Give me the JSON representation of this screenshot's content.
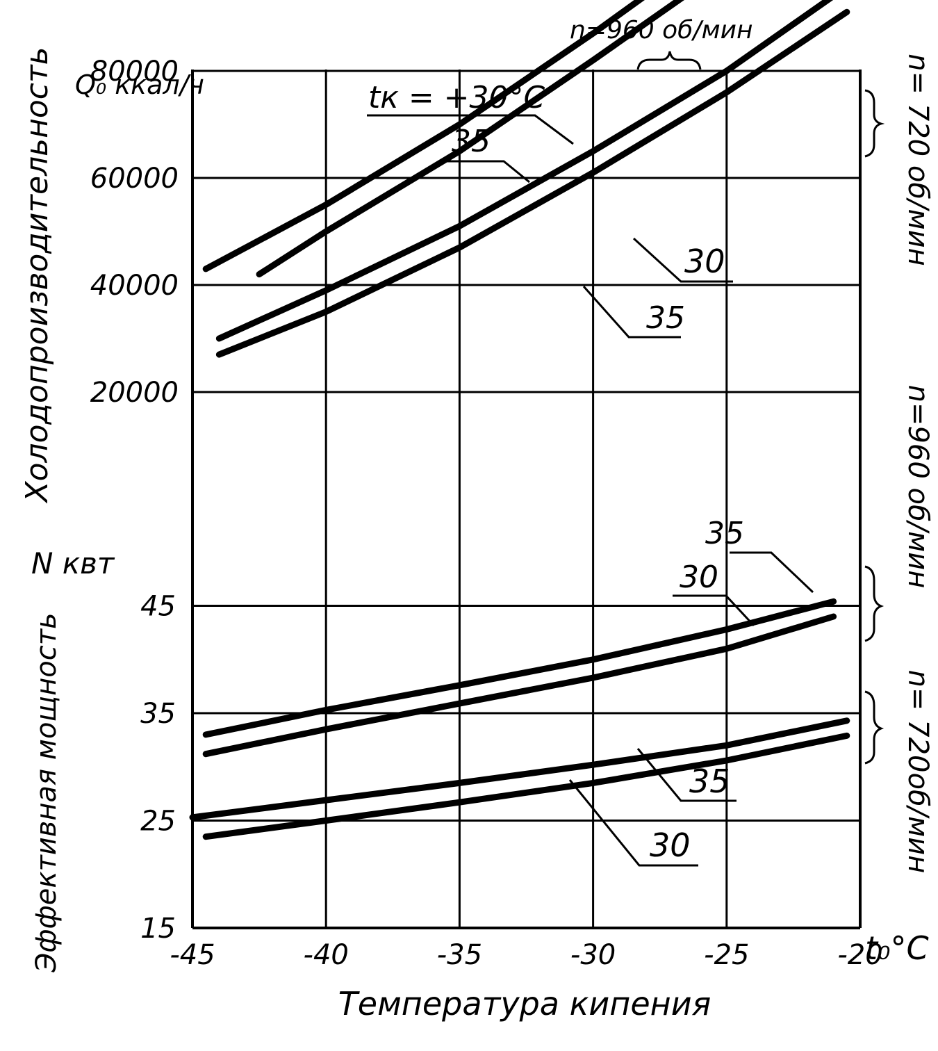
{
  "chart_data": {
    "type": "line",
    "x": [
      -45,
      -40,
      -35,
      -30,
      -25,
      -20
    ],
    "xlabel": "Температура кипения",
    "x_unit": "t₀°C",
    "xlim": [
      -45,
      -20
    ],
    "x_tick_labels": [
      "-45",
      "-40",
      "-35",
      "-30",
      "-25",
      "-20"
    ],
    "grid": true,
    "top_axis": {
      "ylabel": "Холодопроизводительность",
      "unit": "Q₀ ккал/ч",
      "ylim": [
        0,
        100000
      ],
      "tick_labels": [
        "80000",
        "60000",
        "40000",
        "20000"
      ],
      "tick_values": [
        80000,
        60000,
        40000,
        20000
      ]
    },
    "bottom_axis": {
      "ylabel": "Эффективная мощность",
      "unit": "N квт",
      "ylim": [
        15,
        55
      ],
      "tick_labels": [
        "45",
        "35",
        "25",
        "15"
      ],
      "tick_values": [
        45,
        35,
        25,
        15
      ]
    },
    "groups": {
      "cap_960": "n=960 об/мин",
      "cap_720": "n= 720 об/мин",
      "pow_960": "n=960 об/мин",
      "pow_720": "n= 720об/мин"
    },
    "curve_labels": {
      "cap_960_30": "tк = +30°C",
      "cap_960_35": "35",
      "cap_720_30": "30",
      "cap_720_35": "35",
      "pow_960_35": "35",
      "pow_960_30": "30",
      "pow_720_35": "35",
      "pow_720_30": "30"
    },
    "series": [
      {
        "name": "tк = +30°C",
        "group": "n=960 об/мин",
        "axis": "top",
        "x": [
          -44.5,
          -40,
          -35,
          -30,
          -27.5
        ],
        "values": [
          43000,
          55000,
          70000,
          87000,
          96000
        ]
      },
      {
        "name": "35",
        "group": "n=960 об/мин",
        "axis": "top",
        "x": [
          -42.5,
          -40,
          -35,
          -30,
          -26
        ],
        "values": [
          42000,
          50000,
          65000,
          82000,
          96000
        ]
      },
      {
        "name": "30",
        "group": "n= 720 об/мин",
        "axis": "top",
        "x": [
          -44,
          -40,
          -35,
          -30,
          -25,
          -21
        ],
        "values": [
          30000,
          39000,
          51000,
          65000,
          80000,
          94000
        ]
      },
      {
        "name": "35",
        "group": "n= 720 об/мин",
        "axis": "top",
        "x": [
          -44,
          -40,
          -35,
          -30,
          -25,
          -20.5
        ],
        "values": [
          27000,
          35000,
          47000,
          61000,
          76000,
          91000
        ]
      },
      {
        "name": "35",
        "group": "n=960 об/мин",
        "axis": "bottom",
        "x": [
          -44.5,
          -40,
          -35,
          -30,
          -25,
          -21
        ],
        "values": [
          33,
          35.3,
          37.6,
          40,
          42.8,
          45.4
        ]
      },
      {
        "name": "30",
        "group": "n=960 об/мин",
        "axis": "bottom",
        "x": [
          -44.5,
          -40,
          -35,
          -30,
          -25,
          -21
        ],
        "values": [
          31.2,
          33.5,
          35.9,
          38.3,
          41,
          44
        ]
      },
      {
        "name": "35",
        "group": "n= 720об/мин",
        "axis": "bottom",
        "x": [
          -45,
          -40,
          -35,
          -30,
          -25,
          -20.5
        ],
        "values": [
          25.3,
          26.9,
          28.5,
          30.2,
          32,
          34.3
        ]
      },
      {
        "name": "30",
        "group": "n= 720об/мин",
        "axis": "bottom",
        "x": [
          -44.5,
          -40,
          -35,
          -30,
          -25,
          -20.5
        ],
        "values": [
          23.5,
          25,
          26.7,
          28.5,
          30.6,
          32.9
        ]
      }
    ]
  }
}
